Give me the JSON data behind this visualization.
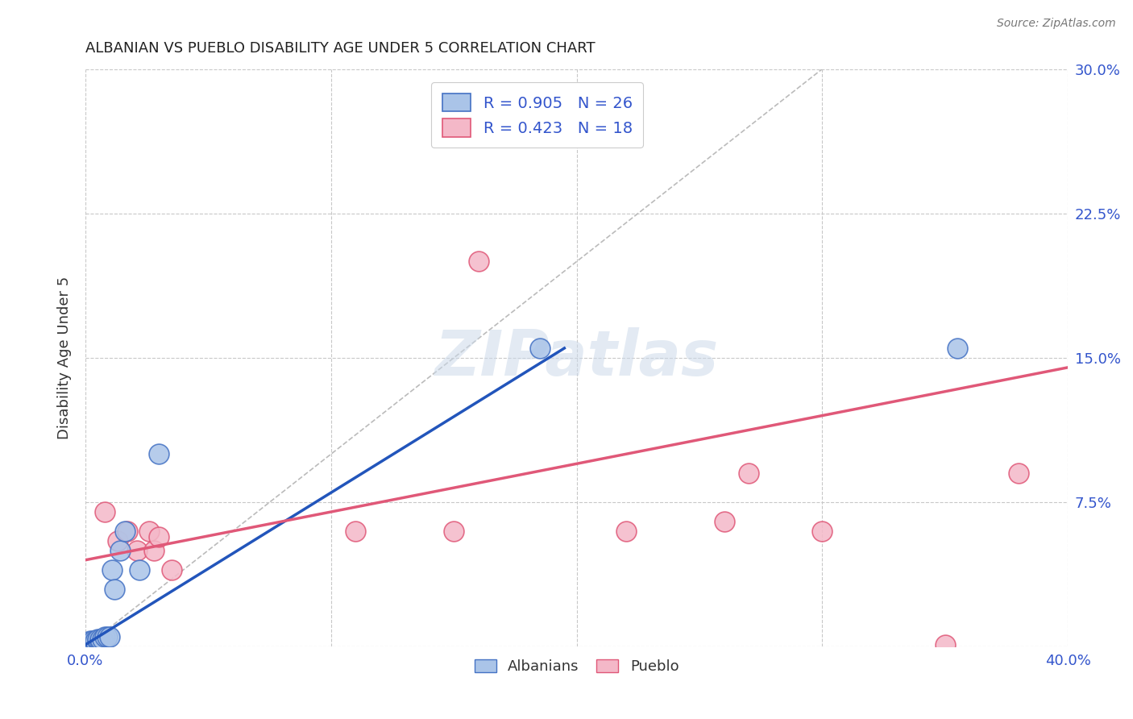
{
  "title": "ALBANIAN VS PUEBLO DISABILITY AGE UNDER 5 CORRELATION CHART",
  "source": "Source: ZipAtlas.com",
  "ylabel": "Disability Age Under 5",
  "xlim": [
    0.0,
    0.4
  ],
  "ylim": [
    0.0,
    0.3
  ],
  "xticks": [
    0.0,
    0.1,
    0.2,
    0.3,
    0.4
  ],
  "yticks": [
    0.0,
    0.075,
    0.15,
    0.225,
    0.3
  ],
  "ytick_labels": [
    "",
    "7.5%",
    "15.0%",
    "22.5%",
    "30.0%"
  ],
  "xtick_labels": [
    "0.0%",
    "",
    "",
    "",
    "40.0%"
  ],
  "background_color": "#ffffff",
  "grid_color": "#c8c8c8",
  "watermark": "ZIPatlas",
  "albanians_color": "#aac4e8",
  "albanians_edge_color": "#4472c4",
  "pueblo_color": "#f4b8c8",
  "pueblo_edge_color": "#e05878",
  "albanians_line_color": "#2255bb",
  "pueblo_line_color": "#e05878",
  "diagonal_color": "#bbbbbb",
  "R_albanians": 0.905,
  "N_albanians": 26,
  "R_pueblo": 0.423,
  "N_pueblo": 18,
  "albanians_x": [
    0.001,
    0.001,
    0.002,
    0.002,
    0.002,
    0.003,
    0.003,
    0.003,
    0.004,
    0.004,
    0.005,
    0.005,
    0.006,
    0.006,
    0.007,
    0.008,
    0.009,
    0.01,
    0.011,
    0.012,
    0.014,
    0.016,
    0.022,
    0.03,
    0.185,
    0.355
  ],
  "albanians_y": [
    0.001,
    0.002,
    0.001,
    0.002,
    0.003,
    0.001,
    0.002,
    0.003,
    0.002,
    0.003,
    0.003,
    0.004,
    0.003,
    0.004,
    0.004,
    0.005,
    0.005,
    0.005,
    0.04,
    0.03,
    0.05,
    0.06,
    0.04,
    0.1,
    0.155,
    0.155
  ],
  "pueblo_x": [
    0.004,
    0.008,
    0.013,
    0.017,
    0.021,
    0.026,
    0.028,
    0.03,
    0.035,
    0.11,
    0.15,
    0.16,
    0.22,
    0.26,
    0.27,
    0.3,
    0.35,
    0.38
  ],
  "pueblo_y": [
    0.001,
    0.07,
    0.055,
    0.06,
    0.05,
    0.06,
    0.05,
    0.057,
    0.04,
    0.06,
    0.06,
    0.2,
    0.06,
    0.065,
    0.09,
    0.06,
    0.001,
    0.09
  ],
  "albanians_trend_x": [
    0.0,
    0.195
  ],
  "albanians_trend_y": [
    0.001,
    0.155
  ],
  "pueblo_trend_x": [
    0.0,
    0.4
  ],
  "pueblo_trend_y": [
    0.045,
    0.145
  ]
}
